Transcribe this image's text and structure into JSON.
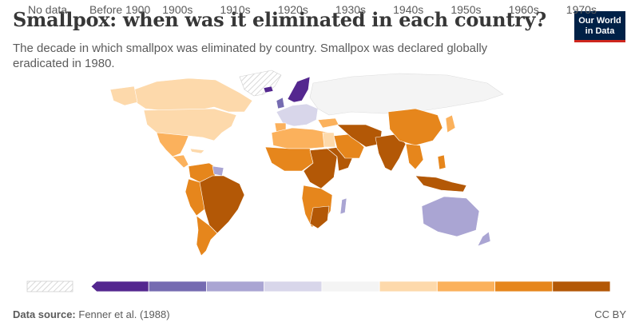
{
  "title": "Smallpox: when was it eliminated in each country?",
  "subtitle": "The decade in which smallpox was eliminated by country. Smallpox was declared globally eradicated in 1980.",
  "logo": {
    "line1": "Our World",
    "line2": "in Data"
  },
  "legend": {
    "no_data_label": "No data",
    "bins": [
      {
        "label": "Before 1900",
        "color": "#54278f"
      },
      {
        "label": "1900s",
        "color": "#756bb1"
      },
      {
        "label": "1910s",
        "color": "#aaa5d3"
      },
      {
        "label": "1920s",
        "color": "#d8d6ea"
      },
      {
        "label": "1930s",
        "color": "#f4f4f4"
      },
      {
        "label": "1940s",
        "color": "#fdd9ab"
      },
      {
        "label": "1950s",
        "color": "#fbb15c"
      },
      {
        "label": "1960s",
        "color": "#e6861c"
      },
      {
        "label": "1970s",
        "color": "#b35806"
      }
    ]
  },
  "footer": {
    "source_label": "Data source:",
    "source_text": "Fenner et al. (1988)",
    "license": "CC BY"
  },
  "colors": {
    "before1900": "#54278f",
    "c1900s": "#756bb1",
    "c1910s": "#aaa5d3",
    "c1920s": "#d8d6ea",
    "c1930s": "#f4f4f4",
    "c1940s": "#fdd9ab",
    "c1950s": "#fbb15c",
    "c1960s": "#e6861c",
    "c1970s": "#b35806"
  }
}
